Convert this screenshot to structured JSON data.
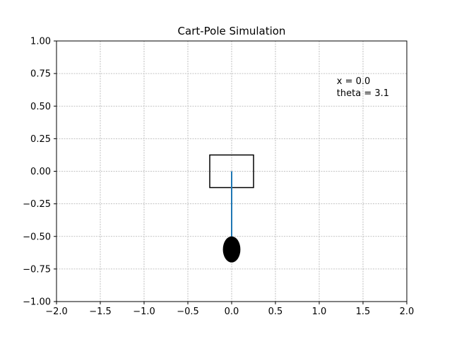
{
  "chart_data": {
    "type": "scatter",
    "title": "Cart-Pole Simulation",
    "xlabel": "",
    "ylabel": "",
    "xlim": [
      -2.0,
      2.0
    ],
    "ylim": [
      -1.0,
      1.0
    ],
    "xticks": [
      "−2.0",
      "−1.5",
      "−1.0",
      "−0.5",
      "0.0",
      "0.5",
      "1.0",
      "1.5",
      "2.0"
    ],
    "yticks": [
      "−1.00",
      "−0.75",
      "−0.50",
      "−0.25",
      "0.00",
      "0.25",
      "0.50",
      "0.75",
      "1.00"
    ],
    "grid": true,
    "cart": {
      "x_min": -0.25,
      "x_max": 0.25,
      "y_min": -0.125,
      "y_max": 0.125,
      "color": "#000000"
    },
    "pole": {
      "x": [
        0.0,
        0.0
      ],
      "y": [
        0.0,
        -0.6
      ],
      "color": "#1f77b4"
    },
    "bob": {
      "x": 0.0,
      "y": -0.6,
      "radius": 0.1,
      "color": "#000000"
    },
    "annotation": {
      "x": 1.2,
      "y": 0.6,
      "lines": [
        "x = 0.0",
        "theta = 3.1"
      ]
    }
  }
}
